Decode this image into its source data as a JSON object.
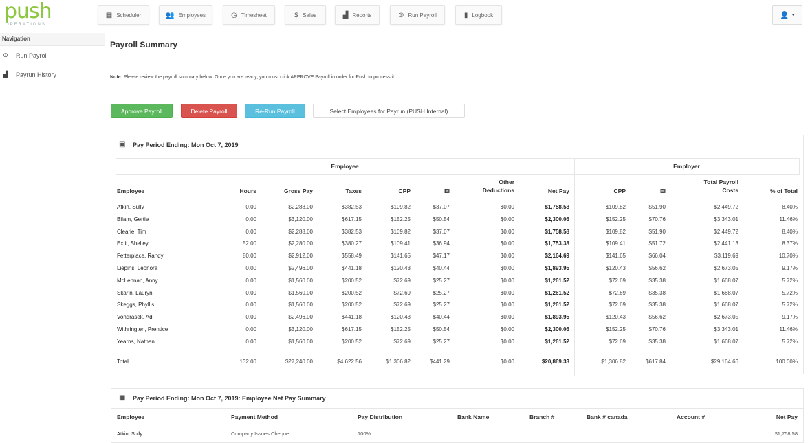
{
  "brand": {
    "logo_main": "push",
    "logo_sub": "OPERATIONS",
    "color": "#8dc63f"
  },
  "topnav": [
    {
      "label": "Scheduler",
      "icon": "calendar-icon"
    },
    {
      "label": "Employees",
      "icon": "people-icon"
    },
    {
      "label": "Timesheet",
      "icon": "clock-icon"
    },
    {
      "label": "Sales",
      "icon": "dollar-icon"
    },
    {
      "label": "Reports",
      "icon": "bar-chart-icon"
    },
    {
      "label": "Run Payroll",
      "icon": "play-circle-icon"
    },
    {
      "label": "Logbook",
      "icon": "book-icon"
    }
  ],
  "user_menu": {
    "icon": "user-icon",
    "caret": "▾"
  },
  "sidebar": {
    "heading": "Navigation",
    "items": [
      {
        "label": "Run Payroll",
        "icon": "play-circle-icon"
      },
      {
        "label": "Payrun History",
        "icon": "bar-chart-icon"
      }
    ]
  },
  "page": {
    "title": "Payroll Summary",
    "note_label": "Note:",
    "note_text": " Please review the payroll summary below. Once you are ready, you must click APPROVE Payroll in order for Push to process it."
  },
  "actions": {
    "approve": "Approve Payroll",
    "delete": "Delete Payroll",
    "rerun": "Re-Run Payroll",
    "select": "Select Employees for Payrun (PUSH Internal)"
  },
  "colors": {
    "green": "#5cb85c",
    "red": "#d9534f",
    "blue": "#5bc0de"
  },
  "summary": {
    "title": "Pay Period Ending: Mon Oct 7, 2019",
    "group_employee": "Employee",
    "group_employer": "Employer",
    "headers": {
      "employee": "Employee",
      "hours": "Hours",
      "gross": "Gross Pay",
      "taxes": "Taxes",
      "cpp": "CPP",
      "ei": "EI",
      "other_1": "Other",
      "other_2": "Deductions",
      "net": "Net Pay",
      "er_cpp": "CPP",
      "er_ei": "EI",
      "total_1": "Total Payroll",
      "total_2": "Costs",
      "pct": "% of Total"
    },
    "rows": [
      {
        "name": "Atkin, Sully",
        "hours": "0.00",
        "gross": "$2,288.00",
        "taxes": "$382.53",
        "cpp": "$109.82",
        "ei": "$37.07",
        "other": "$0.00",
        "net": "$1,758.58",
        "er_cpp": "$109.82",
        "er_ei": "$51.90",
        "total": "$2,449.72",
        "pct": "8.40%"
      },
      {
        "name": "Bilam, Gertie",
        "hours": "0.00",
        "gross": "$3,120.00",
        "taxes": "$617.15",
        "cpp": "$152.25",
        "ei": "$50.54",
        "other": "$0.00",
        "net": "$2,300.06",
        "er_cpp": "$152.25",
        "er_ei": "$70.76",
        "total": "$3,343.01",
        "pct": "11.46%"
      },
      {
        "name": "Clearie, Tim",
        "hours": "0.00",
        "gross": "$2,288.00",
        "taxes": "$382.53",
        "cpp": "$109.82",
        "ei": "$37.07",
        "other": "$0.00",
        "net": "$1,758.58",
        "er_cpp": "$109.82",
        "er_ei": "$51.90",
        "total": "$2,449.72",
        "pct": "8.40%"
      },
      {
        "name": "Extil, Shelley",
        "hours": "52.00",
        "gross": "$2,280.00",
        "taxes": "$380.27",
        "cpp": "$109.41",
        "ei": "$36.94",
        "other": "$0.00",
        "net": "$1,753.38",
        "er_cpp": "$109.41",
        "er_ei": "$51.72",
        "total": "$2,441.13",
        "pct": "8.37%"
      },
      {
        "name": "Fetterplace, Randy",
        "hours": "80.00",
        "gross": "$2,912.00",
        "taxes": "$558.49",
        "cpp": "$141.65",
        "ei": "$47.17",
        "other": "$0.00",
        "net": "$2,164.69",
        "er_cpp": "$141.65",
        "er_ei": "$66.04",
        "total": "$3,119.69",
        "pct": "10.70%"
      },
      {
        "name": "Liepins, Leonora",
        "hours": "0.00",
        "gross": "$2,496.00",
        "taxes": "$441.18",
        "cpp": "$120.43",
        "ei": "$40.44",
        "other": "$0.00",
        "net": "$1,893.95",
        "er_cpp": "$120.43",
        "er_ei": "$56.62",
        "total": "$2,673.05",
        "pct": "9.17%"
      },
      {
        "name": "McLennan, Anny",
        "hours": "0.00",
        "gross": "$1,560.00",
        "taxes": "$200.52",
        "cpp": "$72.69",
        "ei": "$25.27",
        "other": "$0.00",
        "net": "$1,261.52",
        "er_cpp": "$72.69",
        "er_ei": "$35.38",
        "total": "$1,668.07",
        "pct": "5.72%"
      },
      {
        "name": "Skarin, Lauryn",
        "hours": "0.00",
        "gross": "$1,560.00",
        "taxes": "$200.52",
        "cpp": "$72.69",
        "ei": "$25.27",
        "other": "$0.00",
        "net": "$1,261.52",
        "er_cpp": "$72.69",
        "er_ei": "$35.38",
        "total": "$1,668.07",
        "pct": "5.72%"
      },
      {
        "name": "Skeggs, Phyllis",
        "hours": "0.00",
        "gross": "$1,560.00",
        "taxes": "$200.52",
        "cpp": "$72.69",
        "ei": "$25.27",
        "other": "$0.00",
        "net": "$1,261.52",
        "er_cpp": "$72.69",
        "er_ei": "$35.38",
        "total": "$1,668.07",
        "pct": "5.72%"
      },
      {
        "name": "Vondrasek, Adi",
        "hours": "0.00",
        "gross": "$2,496.00",
        "taxes": "$441.18",
        "cpp": "$120.43",
        "ei": "$40.44",
        "other": "$0.00",
        "net": "$1,893.95",
        "er_cpp": "$120.43",
        "er_ei": "$56.62",
        "total": "$2,673.05",
        "pct": "9.17%"
      },
      {
        "name": "Withringten, Prentice",
        "hours": "0.00",
        "gross": "$3,120.00",
        "taxes": "$617.15",
        "cpp": "$152.25",
        "ei": "$50.54",
        "other": "$0.00",
        "net": "$2,300.06",
        "er_cpp": "$152.25",
        "er_ei": "$70.76",
        "total": "$3,343.01",
        "pct": "11.46%"
      },
      {
        "name": "Yearns, Nathan",
        "hours": "0.00",
        "gross": "$1,560.00",
        "taxes": "$200.52",
        "cpp": "$72.69",
        "ei": "$25.27",
        "other": "$0.00",
        "net": "$1,261.52",
        "er_cpp": "$72.69",
        "er_ei": "$35.38",
        "total": "$1,668.07",
        "pct": "5.72%"
      }
    ],
    "total_row": {
      "name": "Total",
      "hours": "132.00",
      "gross": "$27,240.00",
      "taxes": "$4,622.56",
      "cpp": "$1,306.82",
      "ei": "$441.29",
      "other": "$0.00",
      "net": "$20,869.33",
      "er_cpp": "$1,306.82",
      "er_ei": "$617.84",
      "total": "$29,164.66",
      "pct": "100.00%"
    }
  },
  "netpay_summary": {
    "title": "Pay Period Ending: Mon Oct 7, 2019: Employee Net Pay Summary",
    "headers": [
      "Employee",
      "Payment Method",
      "Pay Distribution",
      "Bank Name",
      "Branch #",
      "Bank # canada",
      "Account #",
      "Net Pay"
    ],
    "rows": [
      {
        "employee": "Atkin, Sully",
        "method": "Company Issues Cheque",
        "distribution": "100%",
        "bank": "",
        "branch": "",
        "bank_no": "",
        "account": "",
        "net": "$1,758.58"
      }
    ]
  }
}
